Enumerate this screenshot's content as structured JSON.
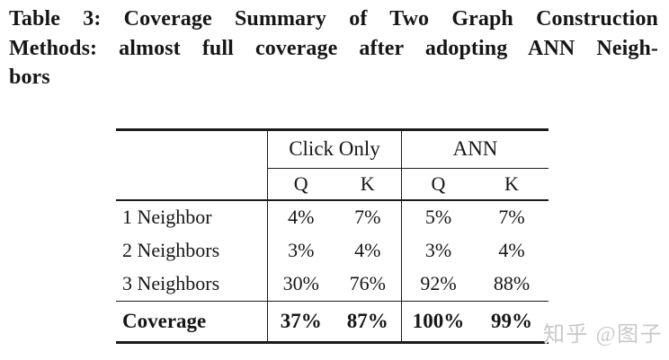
{
  "caption": {
    "lines": [
      "Table 3: Coverage Summary of Two Graph Construction",
      "Methods: almost full coverage after adopting ANN Neigh-",
      "bors"
    ]
  },
  "table": {
    "col_groups": [
      {
        "label": "Click Only"
      },
      {
        "label": "ANN"
      }
    ],
    "sub_headers": [
      "Q",
      "K",
      "Q",
      "K"
    ],
    "rows": [
      {
        "label": "1 Neighbor",
        "values": [
          "4%",
          "7%",
          "5%",
          "7%"
        ]
      },
      {
        "label": "2 Neighbors",
        "values": [
          "3%",
          "4%",
          "3%",
          "4%"
        ]
      },
      {
        "label": "3 Neighbors",
        "values": [
          "30%",
          "76%",
          "92%",
          "88%"
        ]
      }
    ],
    "footer": {
      "label": "Coverage",
      "values": [
        "37%",
        "87%",
        "100%",
        "99%"
      ]
    }
  },
  "watermark": {
    "text": "知乎 @图子"
  },
  "colors": {
    "text": "#161616",
    "rule": "#1a1a1a",
    "watermark": "#c9c9c9",
    "background": "#ffffff"
  }
}
